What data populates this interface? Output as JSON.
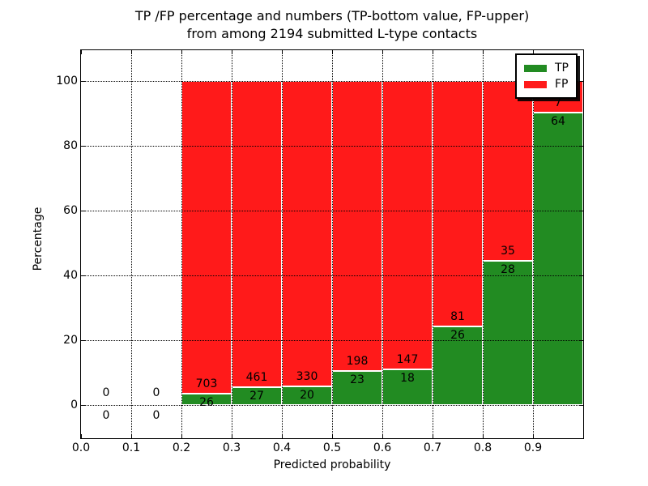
{
  "chart_data": {
    "type": "bar",
    "stacked": true,
    "title_line1": "TP /FP percentage and numbers (TP-bottom value, FP-upper)",
    "title_line2": "from among 2194 submitted L-type contacts",
    "xlabel": "Predicted probability",
    "ylabel": "Percentage",
    "x_tick_labels": [
      "0.0",
      "0.1",
      "0.2",
      "0.3",
      "0.4",
      "0.5",
      "0.6",
      "0.7",
      "0.8",
      "0.9"
    ],
    "y_tick_values": [
      0,
      20,
      40,
      60,
      80,
      100
    ],
    "y_tick_labels": [
      "0",
      "20",
      "40",
      "60",
      "80",
      "100"
    ],
    "xlim": [
      0.0,
      1.0
    ],
    "ylim": [
      -10.25,
      109.5
    ],
    "grid_style": "dotted",
    "legend_position": "upper right",
    "series": [
      {
        "name": "TP",
        "color": "#228B22"
      },
      {
        "name": "FP",
        "color": "#FF1A1A"
      }
    ],
    "bins": [
      {
        "x_start": 0.0,
        "x_end": 0.1,
        "tp": 0,
        "fp": 0
      },
      {
        "x_start": 0.1,
        "x_end": 0.2,
        "tp": 0,
        "fp": 0
      },
      {
        "x_start": 0.2,
        "x_end": 0.3,
        "tp": 26,
        "fp": 703
      },
      {
        "x_start": 0.3,
        "x_end": 0.4,
        "tp": 27,
        "fp": 461
      },
      {
        "x_start": 0.4,
        "x_end": 0.5,
        "tp": 20,
        "fp": 330
      },
      {
        "x_start": 0.5,
        "x_end": 0.6,
        "tp": 23,
        "fp": 198
      },
      {
        "x_start": 0.6,
        "x_end": 0.7,
        "tp": 18,
        "fp": 147
      },
      {
        "x_start": 0.7,
        "x_end": 0.8,
        "tp": 26,
        "fp": 81
      },
      {
        "x_start": 0.8,
        "x_end": 0.9,
        "tp": 28,
        "fp": 35
      },
      {
        "x_start": 0.9,
        "x_end": 1.0,
        "tp": 64,
        "fp": 7
      }
    ]
  }
}
